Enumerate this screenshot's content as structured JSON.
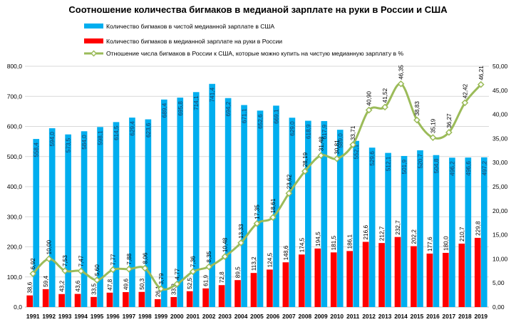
{
  "chart_data": {
    "type": "bar",
    "title": "Соотношение количества бигмаков в медианой зарплате  на руки в России и США",
    "categories": [
      "1991",
      "1992",
      "1993",
      "1994",
      "1995",
      "1996",
      "1997",
      "1998",
      "1999",
      "2000",
      "2001",
      "2002",
      "2003",
      "2004",
      "2005",
      "2006",
      "2007",
      "2008",
      "2009",
      "2010",
      "2011",
      "2012",
      "2013",
      "2014",
      "2015",
      "2016",
      "2017",
      "2018",
      "2019"
    ],
    "series": [
      {
        "name": "Количество бигмаков в чистой медианной зарплате  в США",
        "kind": "bar",
        "axis": "left",
        "color": "#00AEEF",
        "values": [
          558.4,
          594.0,
          573.5,
          584.0,
          598.1,
          614.5,
          629.4,
          623.6,
          689.4,
          695.8,
          714.1,
          741.4,
          694.2,
          671.1,
          652.6,
          669.1,
          629.0,
          618.9,
          617.9,
          589.0,
          552.1,
          529.6,
          512.1,
          501.9,
          520.7,
          504.8,
          496.2,
          496.6,
          497.2
        ],
        "labels": [
          "558,4",
          "594,0",
          "573,5",
          "584,0",
          "598,1",
          "614,5",
          "629,4",
          "623,6",
          "689,4",
          "695,8",
          "714,1",
          "741,4",
          "694,2",
          "671,1",
          "652,6",
          "669,1",
          "629,0",
          "618,9",
          "617,9",
          "589,0",
          "552,1",
          "529,6",
          "512,1",
          "501,9",
          "520,7",
          "504,8",
          "496,2",
          "496,6",
          "497,2"
        ]
      },
      {
        "name": "Количество бигмаков в медианной зарплате  на руки в России",
        "kind": "bar",
        "axis": "left",
        "color": "#FF0000",
        "values": [
          38.6,
          59.4,
          43.2,
          43.6,
          33.5,
          47.8,
          49.6,
          50.3,
          26.1,
          33.2,
          52.5,
          61.9,
          72.8,
          89.5,
          113.2,
          124.5,
          148.6,
          174.5,
          194.5,
          181.5,
          186.1,
          216.6,
          212.7,
          232.7,
          202.2,
          177.6,
          180.0,
          210.7,
          229.8
        ],
        "labels": [
          "38,6",
          "59,4",
          "43,2",
          "43,6",
          "33,5",
          "47,8",
          "49,6",
          "50,3",
          "26,1",
          "33,2",
          "52,5",
          "61,9",
          "72,8",
          "89,5",
          "113,2",
          "124,5",
          "148,6",
          "174,5",
          "194,5",
          "181,5",
          "186,1",
          "216,6",
          "212,7",
          "232,7",
          "202,2",
          "177,6",
          "180,0",
          "210,7",
          "229,8"
        ]
      },
      {
        "name": "Отношение числа бигмаков в России  к США, которые можно купить на чистую медианную зарплату в %",
        "kind": "line",
        "axis": "right",
        "color": "#9BBB59",
        "values": [
          6.92,
          10.0,
          7.53,
          7.47,
          5.6,
          7.77,
          7.88,
          8.06,
          3.79,
          4.77,
          7.36,
          8.35,
          10.48,
          13.33,
          17.35,
          18.61,
          23.62,
          28.19,
          31.48,
          30.81,
          33.71,
          40.9,
          41.52,
          46.35,
          38.83,
          35.19,
          36.27,
          42.42,
          46.21
        ],
        "labels": [
          "6,92",
          "10,00",
          "7,53",
          "7,47",
          "5,60",
          "7,77",
          "7,88",
          "8,06",
          "3,79",
          "4,77",
          "7,36",
          "8,35",
          "10,48",
          "13,33",
          "17,35",
          "18,61",
          "23,62",
          "28,19",
          "31,48",
          "30,81",
          "33,71",
          "40,90",
          "41,52",
          "46,35",
          "38,83",
          "35,19",
          "36,27",
          "42,42",
          "46,21"
        ]
      }
    ],
    "y_left": {
      "min": 0,
      "max": 800,
      "ticks": [
        0,
        100,
        200,
        300,
        400,
        500,
        600,
        700,
        800
      ],
      "tick_labels": [
        "0,0",
        "100,0",
        "200,0",
        "300,0",
        "400,0",
        "500,0",
        "600,0",
        "700,0",
        "800,0"
      ]
    },
    "y_right": {
      "min": 0,
      "max": 50,
      "ticks": [
        0,
        5,
        10,
        15,
        20,
        25,
        30,
        35,
        40,
        45,
        50
      ],
      "tick_labels": [
        "0,00",
        "5,00",
        "10,00",
        "15,00",
        "20,00",
        "25,00",
        "30,00",
        "35,00",
        "40,00",
        "45,00",
        "50,00"
      ]
    },
    "grid": true,
    "legend_position": "top"
  }
}
